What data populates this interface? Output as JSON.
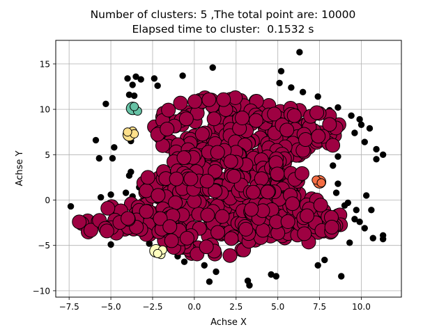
{
  "chart_data": {
    "type": "scatter",
    "title_line1": "Number of clusters: 5 ,The total point are: 10000",
    "title_line2": "Elapsed time to cluster:  0.1532 s",
    "xlabel": "Achse X",
    "ylabel": "Achse Y",
    "xlim": [
      -8.3,
      12.4
    ],
    "ylim": [
      -10.7,
      17.6
    ],
    "xticks": [
      -7.5,
      -5.0,
      -2.5,
      0.0,
      2.5,
      5.0,
      7.5,
      10.0
    ],
    "xtick_labels": [
      "−7.5",
      "−5.0",
      "−2.5",
      "0.0",
      "2.5",
      "5.0",
      "7.5",
      "10.0"
    ],
    "yticks": [
      -10,
      -5,
      0,
      5,
      10,
      15
    ],
    "ytick_labels": [
      "−10",
      "−5",
      "0",
      "5",
      "10",
      "15"
    ],
    "grid": true,
    "colors": {
      "main_cluster": "#9e0142",
      "noise": "#000000",
      "teal_cluster": "#66c2a5",
      "orange_cluster": "#f46d43",
      "yellow_cluster": "#fee08b",
      "pale_cluster": "#ffffbf"
    },
    "main_cluster": {
      "description_regions": [
        {
          "cx": 1.8,
          "cy": 7.8,
          "rx": 4.3,
          "ry": 3.7
        },
        {
          "cx": 5.4,
          "cy": 7.5,
          "rx": 3.4,
          "ry": 3.0
        },
        {
          "cx": 1.4,
          "cy": -0.5,
          "rx": 5.2,
          "ry": 5.8
        },
        {
          "cx": 5.8,
          "cy": -2.2,
          "rx": 3.1,
          "ry": 2.8
        },
        {
          "cx": -4.2,
          "cy": -2.3,
          "rx": 3.2,
          "ry": 1.7
        },
        {
          "cx": 2.4,
          "cy": 3.0,
          "rx": 4.5,
          "ry": 2.5
        }
      ]
    },
    "small_clusters": [
      {
        "name": "teal",
        "points": [
          [
            -3.7,
            10.1
          ],
          [
            -3.4,
            9.8
          ],
          [
            -3.6,
            10.3
          ]
        ]
      },
      {
        "name": "yellow",
        "points": [
          [
            -3.9,
            7.2
          ],
          [
            -3.7,
            7.6
          ],
          [
            -3.6,
            7.3
          ],
          [
            -4.0,
            7.5
          ]
        ]
      },
      {
        "name": "orange",
        "points": [
          [
            7.5,
            2.0
          ],
          [
            7.3,
            2.2
          ],
          [
            7.6,
            1.9
          ]
        ]
      },
      {
        "name": "pale",
        "points": [
          [
            -2.3,
            -5.6
          ],
          [
            -2.0,
            -6.0
          ],
          [
            -1.9,
            -5.5
          ],
          [
            -2.2,
            -5.9
          ]
        ]
      }
    ],
    "noise_points": [
      [
        6.3,
        16.3
      ],
      [
        1.1,
        14.6
      ],
      [
        -4.0,
        13.4
      ],
      [
        -3.5,
        13.6
      ],
      [
        -3.7,
        12.7
      ],
      [
        -3.2,
        13.3
      ],
      [
        5.2,
        14.2
      ],
      [
        -5.3,
        10.6
      ],
      [
        -2.4,
        13.4
      ],
      [
        -2.2,
        12.6
      ],
      [
        -0.7,
        13.7
      ],
      [
        7.4,
        11.4
      ],
      [
        -3.9,
        11.6
      ],
      [
        -3.6,
        11.5
      ],
      [
        8.6,
        10.2
      ],
      [
        8.1,
        9.9
      ],
      [
        9.4,
        9.3
      ],
      [
        9.9,
        8.9
      ],
      [
        10.0,
        8.3
      ],
      [
        10.5,
        7.9
      ],
      [
        9.6,
        7.4
      ],
      [
        10.2,
        6.4
      ],
      [
        10.9,
        5.6
      ],
      [
        11.3,
        5.0
      ],
      [
        10.9,
        4.5
      ],
      [
        -5.9,
        6.6
      ],
      [
        -5.7,
        4.6
      ],
      [
        -4.9,
        4.6
      ],
      [
        -4.8,
        5.8
      ],
      [
        -3.8,
        6.5
      ],
      [
        -3.8,
        3.1
      ],
      [
        -3.9,
        2.7
      ],
      [
        -3.3,
        1.4
      ],
      [
        -2.9,
        1.2
      ],
      [
        -4.1,
        0.8
      ],
      [
        -3.7,
        0.4
      ],
      [
        -7.4,
        -0.7
      ],
      [
        -5.0,
        -4.9
      ],
      [
        -2.7,
        -4.8
      ],
      [
        -1.0,
        -6.2
      ],
      [
        -0.6,
        -6.8
      ],
      [
        0.6,
        -7.2
      ],
      [
        0.9,
        -9.0
      ],
      [
        1.3,
        -7.9
      ],
      [
        3.2,
        -8.9
      ],
      [
        3.3,
        -9.4
      ],
      [
        4.6,
        -8.2
      ],
      [
        4.9,
        -8.4
      ],
      [
        7.4,
        -7.2
      ],
      [
        8.8,
        -8.4
      ],
      [
        7.8,
        -6.6
      ],
      [
        9.3,
        -4.7
      ],
      [
        10.2,
        -3.1
      ],
      [
        10.7,
        -4.2
      ],
      [
        11.3,
        -3.9
      ],
      [
        11.3,
        -4.3
      ],
      [
        10.6,
        -1.1
      ],
      [
        9.7,
        -1.1
      ],
      [
        9.6,
        -2.1
      ],
      [
        9.9,
        -2.4
      ],
      [
        9.2,
        -0.3
      ],
      [
        8.6,
        1.8
      ],
      [
        8.5,
        0.8
      ],
      [
        9.0,
        -0.6
      ],
      [
        10.3,
        0.5
      ],
      [
        8.3,
        3.8
      ],
      [
        8.6,
        4.8
      ],
      [
        -5.6,
        0.3
      ],
      [
        -5.0,
        0.6
      ],
      [
        5.1,
        12.9
      ],
      [
        6.5,
        11.9
      ],
      [
        5.8,
        12.4
      ]
    ]
  }
}
